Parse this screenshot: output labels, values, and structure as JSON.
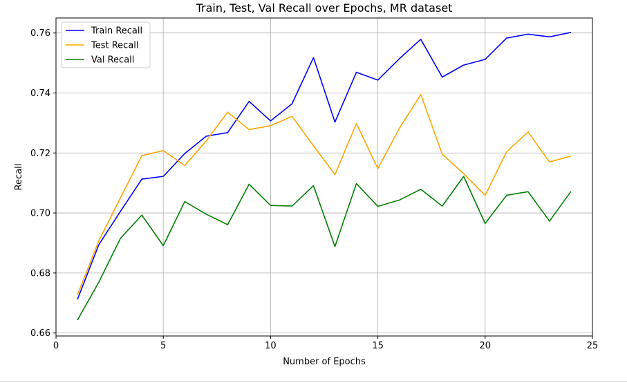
{
  "chart_data": {
    "type": "line",
    "title": "Train, Test, Val Recall over Epochs, MR dataset",
    "xlabel": "Number of Epochs",
    "ylabel": "Recall",
    "xlim": [
      0,
      25
    ],
    "ylim": [
      0.659,
      0.765
    ],
    "xticks": [
      0,
      5,
      10,
      15,
      20,
      25
    ],
    "yticks": [
      0.66,
      0.68,
      0.7,
      0.72,
      0.74,
      0.76
    ],
    "ytick_labels": [
      "0.66",
      "0.68",
      "0.70",
      "0.72",
      "0.74",
      "0.76"
    ],
    "grid": true,
    "legend_position": "top-left",
    "x": [
      1,
      2,
      3,
      4,
      5,
      6,
      7,
      8,
      9,
      10,
      11,
      12,
      13,
      14,
      15,
      16,
      17,
      18,
      19,
      20,
      21,
      22,
      23,
      24
    ],
    "series": [
      {
        "name": "Train Recall",
        "color": "#0000ff",
        "values": [
          0.6712,
          0.6895,
          0.7005,
          0.7113,
          0.7122,
          0.7198,
          0.7256,
          0.7268,
          0.7372,
          0.7307,
          0.7364,
          0.7518,
          0.7303,
          0.7469,
          0.7443,
          0.7514,
          0.7579,
          0.7453,
          0.7493,
          0.7512,
          0.7583,
          0.7596,
          0.7587,
          0.7602
        ]
      },
      {
        "name": "Test Recall",
        "color": "#ffa500",
        "values": [
          0.6727,
          0.6908,
          0.705,
          0.7191,
          0.7208,
          0.7158,
          0.724,
          0.7336,
          0.7278,
          0.7291,
          0.7322,
          0.7224,
          0.7128,
          0.7298,
          0.7148,
          0.7282,
          0.7395,
          0.7196,
          0.7131,
          0.7059,
          0.7204,
          0.727,
          0.717,
          0.719
        ]
      },
      {
        "name": "Val Recall",
        "color": "#008000",
        "values": [
          0.6643,
          0.677,
          0.6915,
          0.6993,
          0.6891,
          0.7038,
          0.6996,
          0.6961,
          0.7096,
          0.7025,
          0.7023,
          0.7091,
          0.6888,
          0.7098,
          0.7022,
          0.7043,
          0.7079,
          0.7023,
          0.7122,
          0.6965,
          0.7059,
          0.7071,
          0.6973,
          0.7072
        ]
      }
    ]
  }
}
